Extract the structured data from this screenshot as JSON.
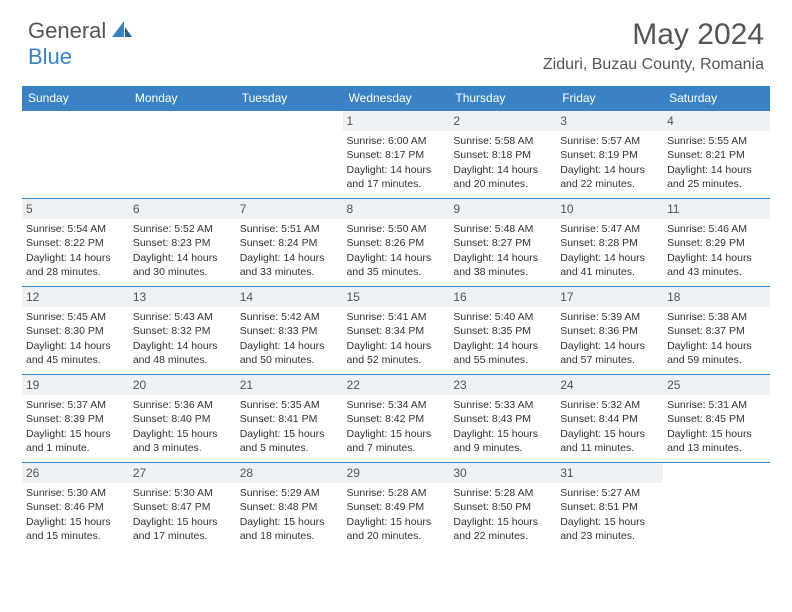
{
  "brand": {
    "general": "General",
    "blue": "Blue"
  },
  "title": "May 2024",
  "location": "Ziduri, Buzau County, Romania",
  "colors": {
    "header_bg": "#3b82c4",
    "header_text": "#ffffff",
    "daynum_bg": "#eef2f5",
    "border": "#3b82c4",
    "text": "#333333",
    "title_text": "#555555"
  },
  "weekdays": [
    "Sunday",
    "Monday",
    "Tuesday",
    "Wednesday",
    "Thursday",
    "Friday",
    "Saturday"
  ],
  "weeks": [
    [
      {
        "day": "",
        "lines": [
          "",
          "",
          "",
          ""
        ]
      },
      {
        "day": "",
        "lines": [
          "",
          "",
          "",
          ""
        ]
      },
      {
        "day": "",
        "lines": [
          "",
          "",
          "",
          ""
        ]
      },
      {
        "day": "1",
        "lines": [
          "Sunrise: 6:00 AM",
          "Sunset: 8:17 PM",
          "Daylight: 14 hours",
          "and 17 minutes."
        ]
      },
      {
        "day": "2",
        "lines": [
          "Sunrise: 5:58 AM",
          "Sunset: 8:18 PM",
          "Daylight: 14 hours",
          "and 20 minutes."
        ]
      },
      {
        "day": "3",
        "lines": [
          "Sunrise: 5:57 AM",
          "Sunset: 8:19 PM",
          "Daylight: 14 hours",
          "and 22 minutes."
        ]
      },
      {
        "day": "4",
        "lines": [
          "Sunrise: 5:55 AM",
          "Sunset: 8:21 PM",
          "Daylight: 14 hours",
          "and 25 minutes."
        ]
      }
    ],
    [
      {
        "day": "5",
        "lines": [
          "Sunrise: 5:54 AM",
          "Sunset: 8:22 PM",
          "Daylight: 14 hours",
          "and 28 minutes."
        ]
      },
      {
        "day": "6",
        "lines": [
          "Sunrise: 5:52 AM",
          "Sunset: 8:23 PM",
          "Daylight: 14 hours",
          "and 30 minutes."
        ]
      },
      {
        "day": "7",
        "lines": [
          "Sunrise: 5:51 AM",
          "Sunset: 8:24 PM",
          "Daylight: 14 hours",
          "and 33 minutes."
        ]
      },
      {
        "day": "8",
        "lines": [
          "Sunrise: 5:50 AM",
          "Sunset: 8:26 PM",
          "Daylight: 14 hours",
          "and 35 minutes."
        ]
      },
      {
        "day": "9",
        "lines": [
          "Sunrise: 5:48 AM",
          "Sunset: 8:27 PM",
          "Daylight: 14 hours",
          "and 38 minutes."
        ]
      },
      {
        "day": "10",
        "lines": [
          "Sunrise: 5:47 AM",
          "Sunset: 8:28 PM",
          "Daylight: 14 hours",
          "and 41 minutes."
        ]
      },
      {
        "day": "11",
        "lines": [
          "Sunrise: 5:46 AM",
          "Sunset: 8:29 PM",
          "Daylight: 14 hours",
          "and 43 minutes."
        ]
      }
    ],
    [
      {
        "day": "12",
        "lines": [
          "Sunrise: 5:45 AM",
          "Sunset: 8:30 PM",
          "Daylight: 14 hours",
          "and 45 minutes."
        ]
      },
      {
        "day": "13",
        "lines": [
          "Sunrise: 5:43 AM",
          "Sunset: 8:32 PM",
          "Daylight: 14 hours",
          "and 48 minutes."
        ]
      },
      {
        "day": "14",
        "lines": [
          "Sunrise: 5:42 AM",
          "Sunset: 8:33 PM",
          "Daylight: 14 hours",
          "and 50 minutes."
        ]
      },
      {
        "day": "15",
        "lines": [
          "Sunrise: 5:41 AM",
          "Sunset: 8:34 PM",
          "Daylight: 14 hours",
          "and 52 minutes."
        ]
      },
      {
        "day": "16",
        "lines": [
          "Sunrise: 5:40 AM",
          "Sunset: 8:35 PM",
          "Daylight: 14 hours",
          "and 55 minutes."
        ]
      },
      {
        "day": "17",
        "lines": [
          "Sunrise: 5:39 AM",
          "Sunset: 8:36 PM",
          "Daylight: 14 hours",
          "and 57 minutes."
        ]
      },
      {
        "day": "18",
        "lines": [
          "Sunrise: 5:38 AM",
          "Sunset: 8:37 PM",
          "Daylight: 14 hours",
          "and 59 minutes."
        ]
      }
    ],
    [
      {
        "day": "19",
        "lines": [
          "Sunrise: 5:37 AM",
          "Sunset: 8:39 PM",
          "Daylight: 15 hours",
          "and 1 minute."
        ]
      },
      {
        "day": "20",
        "lines": [
          "Sunrise: 5:36 AM",
          "Sunset: 8:40 PM",
          "Daylight: 15 hours",
          "and 3 minutes."
        ]
      },
      {
        "day": "21",
        "lines": [
          "Sunrise: 5:35 AM",
          "Sunset: 8:41 PM",
          "Daylight: 15 hours",
          "and 5 minutes."
        ]
      },
      {
        "day": "22",
        "lines": [
          "Sunrise: 5:34 AM",
          "Sunset: 8:42 PM",
          "Daylight: 15 hours",
          "and 7 minutes."
        ]
      },
      {
        "day": "23",
        "lines": [
          "Sunrise: 5:33 AM",
          "Sunset: 8:43 PM",
          "Daylight: 15 hours",
          "and 9 minutes."
        ]
      },
      {
        "day": "24",
        "lines": [
          "Sunrise: 5:32 AM",
          "Sunset: 8:44 PM",
          "Daylight: 15 hours",
          "and 11 minutes."
        ]
      },
      {
        "day": "25",
        "lines": [
          "Sunrise: 5:31 AM",
          "Sunset: 8:45 PM",
          "Daylight: 15 hours",
          "and 13 minutes."
        ]
      }
    ],
    [
      {
        "day": "26",
        "lines": [
          "Sunrise: 5:30 AM",
          "Sunset: 8:46 PM",
          "Daylight: 15 hours",
          "and 15 minutes."
        ]
      },
      {
        "day": "27",
        "lines": [
          "Sunrise: 5:30 AM",
          "Sunset: 8:47 PM",
          "Daylight: 15 hours",
          "and 17 minutes."
        ]
      },
      {
        "day": "28",
        "lines": [
          "Sunrise: 5:29 AM",
          "Sunset: 8:48 PM",
          "Daylight: 15 hours",
          "and 18 minutes."
        ]
      },
      {
        "day": "29",
        "lines": [
          "Sunrise: 5:28 AM",
          "Sunset: 8:49 PM",
          "Daylight: 15 hours",
          "and 20 minutes."
        ]
      },
      {
        "day": "30",
        "lines": [
          "Sunrise: 5:28 AM",
          "Sunset: 8:50 PM",
          "Daylight: 15 hours",
          "and 22 minutes."
        ]
      },
      {
        "day": "31",
        "lines": [
          "Sunrise: 5:27 AM",
          "Sunset: 8:51 PM",
          "Daylight: 15 hours",
          "and 23 minutes."
        ]
      },
      {
        "day": "",
        "lines": [
          "",
          "",
          "",
          ""
        ]
      }
    ]
  ]
}
